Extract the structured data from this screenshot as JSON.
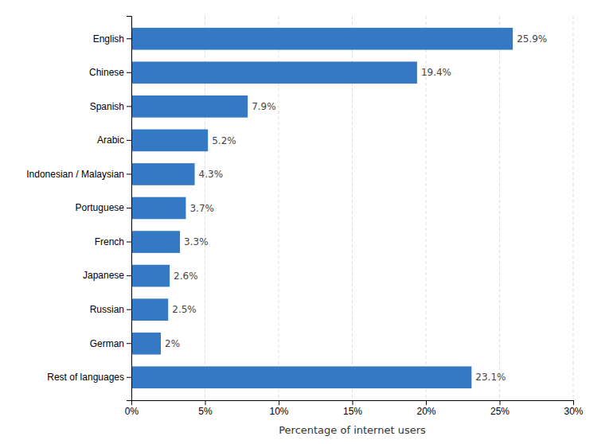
{
  "chart_data": {
    "type": "bar",
    "orientation": "horizontal",
    "categories": [
      "English",
      "Chinese",
      "Spanish",
      "Arabic",
      "Indonesian / Malaysian",
      "Portuguese",
      "French",
      "Japanese",
      "Russian",
      "German",
      "Rest of languages"
    ],
    "values": [
      25.9,
      19.4,
      7.9,
      5.2,
      4.3,
      3.7,
      3.3,
      2.6,
      2.5,
      2.0,
      23.1
    ],
    "value_labels": [
      "25.9%",
      "19.4%",
      "7.9%",
      "5.2%",
      "4.3%",
      "3.7%",
      "3.3%",
      "2.6%",
      "2.5%",
      "2%",
      "23.1%"
    ],
    "data_labels": true,
    "color": "#3579c4",
    "xlabel": "Percentage of internet users",
    "xlim": [
      0,
      30
    ],
    "xticks": [
      {
        "value": 0,
        "label": "0%"
      },
      {
        "value": 5,
        "label": "5%"
      },
      {
        "value": 10,
        "label": "10%"
      },
      {
        "value": 15,
        "label": "15%"
      },
      {
        "value": 20,
        "label": "20%"
      },
      {
        "value": 25,
        "label": "25%"
      },
      {
        "value": 30,
        "label": "30%"
      }
    ],
    "grid": true
  }
}
